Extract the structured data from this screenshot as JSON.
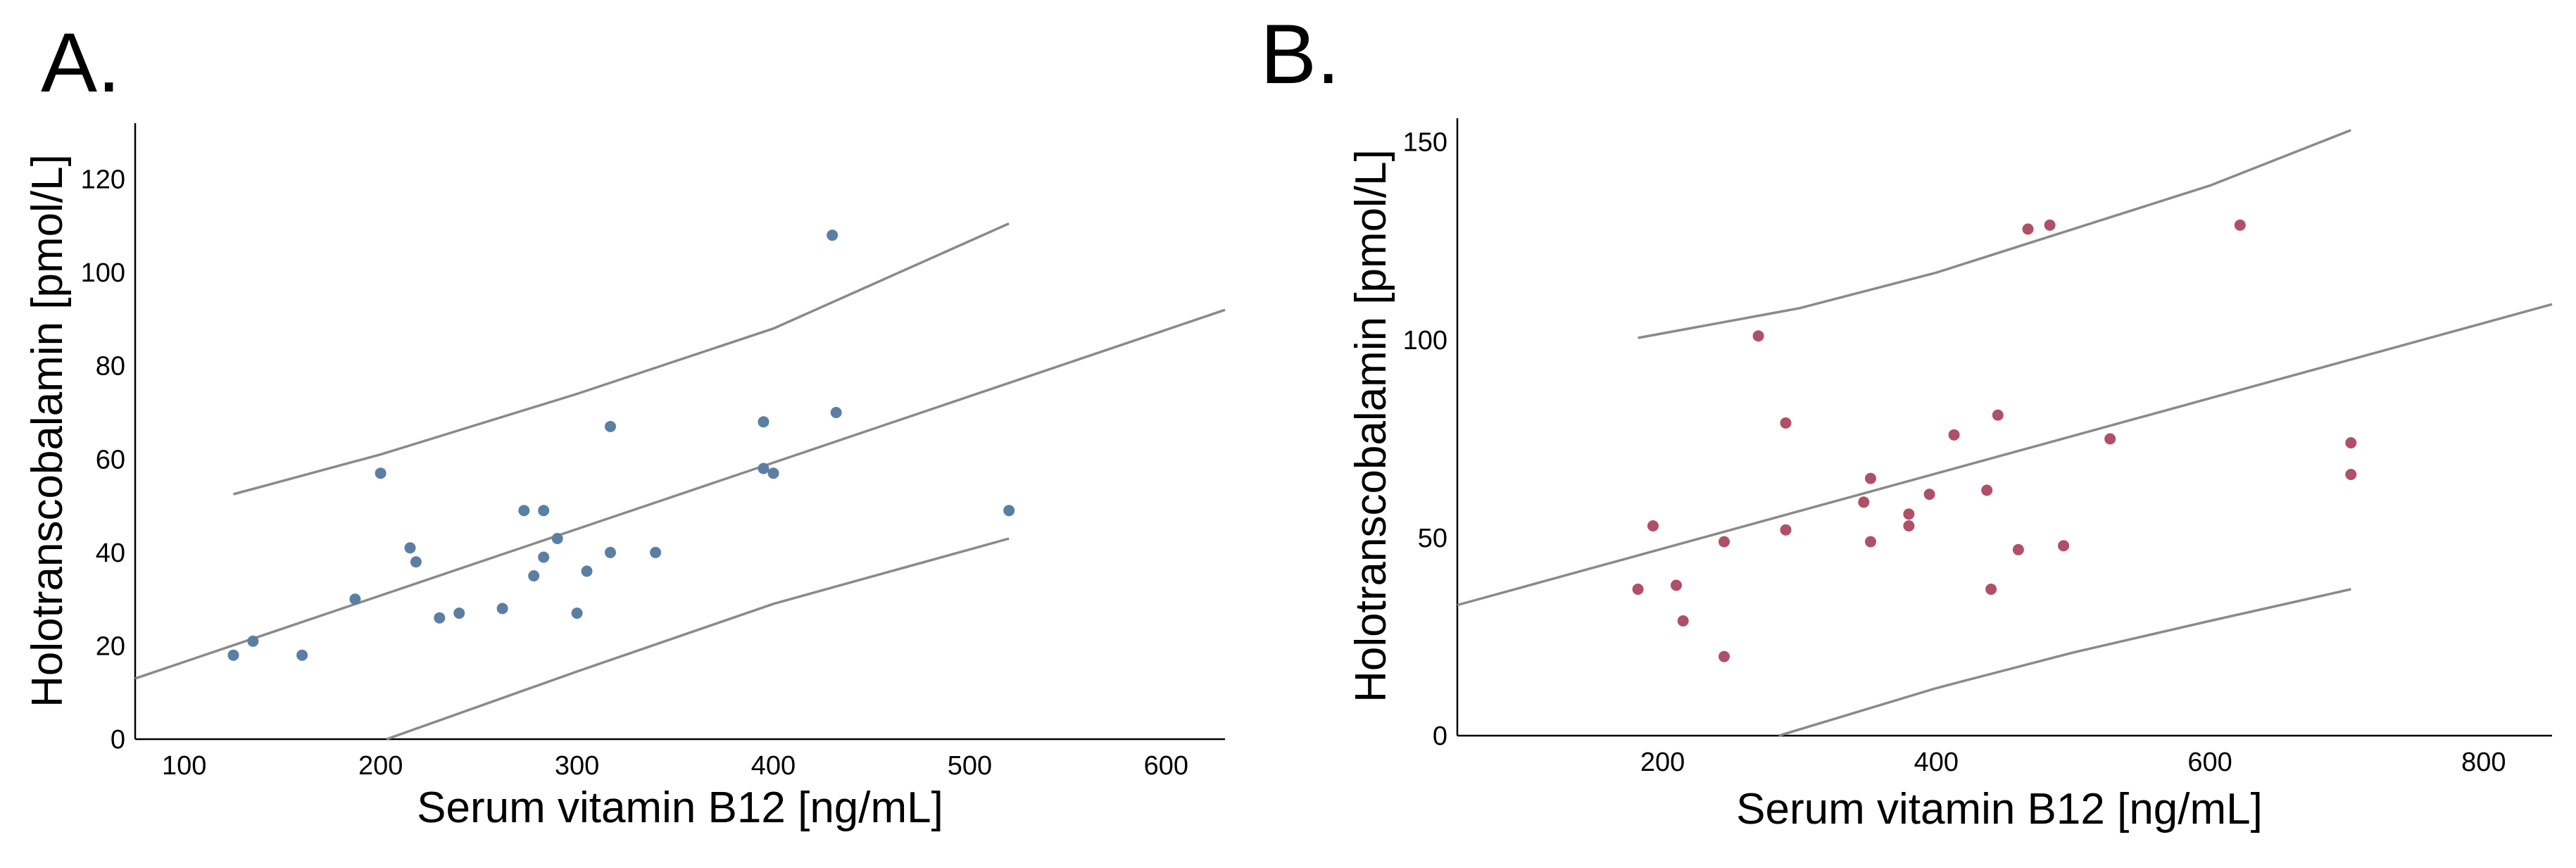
{
  "chart_data": [
    {
      "type": "scatter",
      "panel_label": "A.",
      "xlabel": "Serum vitamin B12 [ng/mL]",
      "ylabel": "Holotranscobalamin [pmol/L]",
      "xlim": [
        75,
        630
      ],
      "ylim": [
        0,
        132
      ],
      "xticks": [
        100,
        200,
        300,
        400,
        500,
        600
      ],
      "yticks": [
        0,
        20,
        40,
        60,
        80,
        100,
        120
      ],
      "point_color": "#5b7fa3",
      "line_color": "#8a8a8a",
      "points": [
        {
          "x": 125,
          "y": 18
        },
        {
          "x": 135,
          "y": 21
        },
        {
          "x": 160,
          "y": 18
        },
        {
          "x": 187,
          "y": 30
        },
        {
          "x": 200,
          "y": 57
        },
        {
          "x": 215,
          "y": 41
        },
        {
          "x": 218,
          "y": 38
        },
        {
          "x": 230,
          "y": 26
        },
        {
          "x": 240,
          "y": 27
        },
        {
          "x": 262,
          "y": 28
        },
        {
          "x": 273,
          "y": 49
        },
        {
          "x": 278,
          "y": 35
        },
        {
          "x": 283,
          "y": 49
        },
        {
          "x": 283,
          "y": 39
        },
        {
          "x": 290,
          "y": 43
        },
        {
          "x": 300,
          "y": 27
        },
        {
          "x": 305,
          "y": 36
        },
        {
          "x": 317,
          "y": 67
        },
        {
          "x": 317,
          "y": 40
        },
        {
          "x": 340,
          "y": 40
        },
        {
          "x": 395,
          "y": 68
        },
        {
          "x": 395,
          "y": 58
        },
        {
          "x": 400,
          "y": 57
        },
        {
          "x": 430,
          "y": 108
        },
        {
          "x": 432,
          "y": 70
        },
        {
          "x": 520,
          "y": 49
        }
      ],
      "fit_line": [
        [
          75,
          13
        ],
        [
          630,
          92
        ]
      ],
      "upper_band": [
        [
          125,
          52.5
        ],
        [
          200,
          61
        ],
        [
          300,
          74
        ],
        [
          400,
          88
        ],
        [
          520,
          110.5
        ]
      ],
      "lower_band": [
        [
          203,
          0
        ],
        [
          300,
          14.5
        ],
        [
          400,
          29
        ],
        [
          520,
          43
        ]
      ]
    },
    {
      "type": "scatter",
      "panel_label": "B.",
      "xlabel": "Serum vitamin B12 [ng/mL]",
      "ylabel": "Holotranscobalamin [pmol/L]",
      "xlim": [
        50,
        850
      ],
      "ylim": [
        0,
        156
      ],
      "xticks": [
        200,
        400,
        600,
        800
      ],
      "yticks": [
        0,
        50,
        100,
        150
      ],
      "point_color": "#b05068",
      "line_color": "#8a8a8a",
      "points": [
        {
          "x": 182,
          "y": 37
        },
        {
          "x": 193,
          "y": 53
        },
        {
          "x": 210,
          "y": 38
        },
        {
          "x": 215,
          "y": 29
        },
        {
          "x": 245,
          "y": 49
        },
        {
          "x": 245,
          "y": 20
        },
        {
          "x": 270,
          "y": 101
        },
        {
          "x": 290,
          "y": 79
        },
        {
          "x": 290,
          "y": 52
        },
        {
          "x": 347,
          "y": 59
        },
        {
          "x": 352,
          "y": 65
        },
        {
          "x": 352,
          "y": 49
        },
        {
          "x": 380,
          "y": 56
        },
        {
          "x": 380,
          "y": 53
        },
        {
          "x": 395,
          "y": 61
        },
        {
          "x": 413,
          "y": 76
        },
        {
          "x": 437,
          "y": 62
        },
        {
          "x": 440,
          "y": 37
        },
        {
          "x": 445,
          "y": 81
        },
        {
          "x": 460,
          "y": 47
        },
        {
          "x": 467,
          "y": 128
        },
        {
          "x": 483,
          "y": 129
        },
        {
          "x": 493,
          "y": 48
        },
        {
          "x": 527,
          "y": 75
        },
        {
          "x": 622,
          "y": 129
        },
        {
          "x": 703,
          "y": 74
        },
        {
          "x": 703,
          "y": 66
        }
      ],
      "fit_line": [
        [
          50,
          33
        ],
        [
          850,
          109
        ]
      ],
      "upper_band": [
        [
          182,
          100.5
        ],
        [
          300,
          108
        ],
        [
          400,
          117
        ],
        [
          500,
          128
        ],
        [
          600,
          139
        ],
        [
          703,
          153
        ]
      ],
      "lower_band": [
        [
          285,
          0
        ],
        [
          400,
          12
        ],
        [
          500,
          21
        ],
        [
          600,
          29
        ],
        [
          703,
          37
        ]
      ]
    }
  ]
}
